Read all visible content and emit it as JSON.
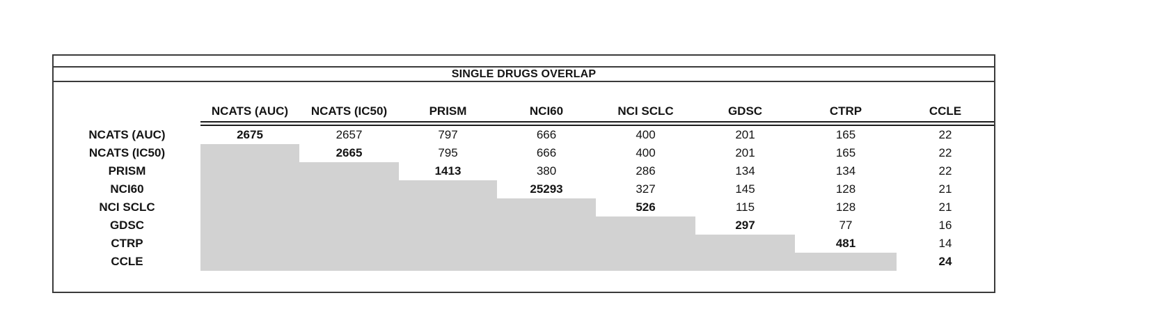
{
  "table": {
    "title": "SINGLE DRUGS OVERLAP"
  },
  "chart_data": {
    "type": "table",
    "title": "SINGLE DRUGS OVERLAP",
    "columns": [
      "NCATS (AUC)",
      "NCATS (IC50)",
      "PRISM",
      "NCI60",
      "NCI SCLC",
      "GDSC",
      "CTRP",
      "CCLE"
    ],
    "rows": [
      "NCATS (AUC)",
      "NCATS (IC50)",
      "PRISM",
      "NCI60",
      "NCI SCLC",
      "GDSC",
      "CTRP",
      "CCLE"
    ],
    "matrix": [
      [
        2675,
        2657,
        797,
        666,
        400,
        201,
        165,
        22
      ],
      [
        null,
        2665,
        795,
        666,
        400,
        201,
        165,
        22
      ],
      [
        null,
        null,
        1413,
        380,
        286,
        134,
        134,
        22
      ],
      [
        null,
        null,
        null,
        25293,
        327,
        145,
        128,
        21
      ],
      [
        null,
        null,
        null,
        null,
        526,
        115,
        128,
        21
      ],
      [
        null,
        null,
        null,
        null,
        null,
        297,
        77,
        16
      ],
      [
        null,
        null,
        null,
        null,
        null,
        null,
        481,
        14
      ],
      [
        null,
        null,
        null,
        null,
        null,
        null,
        null,
        24
      ]
    ],
    "diagonal_values_bold": true,
    "lower_triangle_shaded": true,
    "shade_color": "#d2d2d2",
    "text_color": "#141414",
    "border_color": "#3a3a3a"
  }
}
